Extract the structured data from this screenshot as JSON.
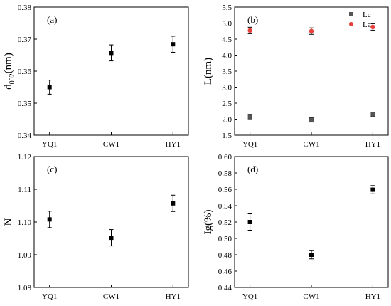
{
  "chart_data": [
    {
      "type": "scatter",
      "panel": "(a)",
      "categories": [
        "YQ1",
        "CW1",
        "HY1"
      ],
      "ylabel": "d002(nm)",
      "ylabel_main": "d",
      "ylabel_sub": "002",
      "ylabel_unit": "(nm)",
      "ylim": [
        0.34,
        0.38
      ],
      "yticks": [
        0.34,
        0.35,
        0.36,
        0.37,
        0.38
      ],
      "yticklabels": [
        "0.34",
        "0.35",
        "0.36",
        "0.37",
        "0.38"
      ],
      "series": [
        {
          "values": [
            0.355,
            0.3657,
            0.3684
          ],
          "errors": [
            0.0022,
            0.0025,
            0.0025
          ],
          "color": "#000000",
          "marker": "square"
        }
      ]
    },
    {
      "type": "scatter",
      "panel": "(b)",
      "categories": [
        "YQ1",
        "CW1",
        "HY1"
      ],
      "ylabel": "L(nm)",
      "ylim": [
        1.5,
        5.5
      ],
      "yticks": [
        1.5,
        2.0,
        2.5,
        3.0,
        3.5,
        4.0,
        4.5,
        5.0,
        5.5
      ],
      "yticklabels": [
        "1.5",
        "2.0",
        "2.5",
        "3.0",
        "3.5",
        "4.0",
        "4.5",
        "5.0",
        "5.5"
      ],
      "legend_position": "top-right",
      "series": [
        {
          "name": "Lc",
          "values": [
            2.08,
            1.98,
            2.15
          ],
          "errors": [
            0.07,
            0.07,
            0.07
          ],
          "color": "#555555",
          "marker": "square"
        },
        {
          "name": "La",
          "values": [
            4.77,
            4.75,
            4.88
          ],
          "errors": [
            0.1,
            0.1,
            0.1
          ],
          "color": "#e8413b",
          "marker": "circle"
        }
      ]
    },
    {
      "type": "scatter",
      "panel": "(c)",
      "categories": [
        "YQ1",
        "CW1",
        "HY1"
      ],
      "ylabel": "N",
      "ylim": [
        1.08,
        1.12
      ],
      "yticks": [
        1.08,
        1.09,
        1.1,
        1.11,
        1.12
      ],
      "yticklabels": [
        "1.08",
        "1.09",
        "1.10",
        "1.11",
        "1.12"
      ],
      "series": [
        {
          "values": [
            1.1008,
            1.0952,
            1.1057
          ],
          "errors": [
            0.0025,
            0.0025,
            0.0025
          ],
          "color": "#000000",
          "marker": "square"
        }
      ]
    },
    {
      "type": "scatter",
      "panel": "(d)",
      "categories": [
        "YQ1",
        "CW1",
        "HY1"
      ],
      "ylabel": "Ig(%)",
      "ylim": [
        0.44,
        0.6
      ],
      "yticks": [
        0.44,
        0.46,
        0.48,
        0.5,
        0.52,
        0.54,
        0.56,
        0.58,
        0.6
      ],
      "yticklabels": [
        "0.44",
        "0.46",
        "0.48",
        "0.50",
        "0.52",
        "0.54",
        "0.56",
        "0.58",
        "0.60"
      ],
      "series": [
        {
          "values": [
            0.52,
            0.48,
            0.5595
          ],
          "errors": [
            0.01,
            0.005,
            0.005
          ],
          "color": "#000000",
          "marker": "square"
        }
      ]
    }
  ]
}
